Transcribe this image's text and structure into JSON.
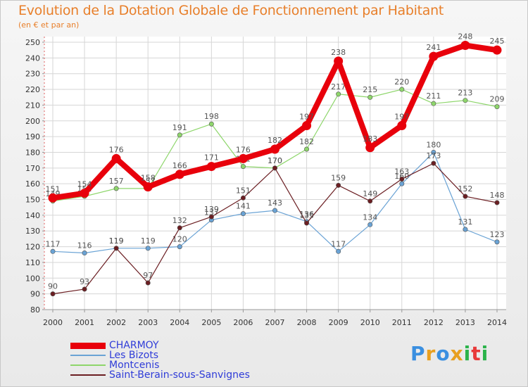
{
  "chart_data": {
    "type": "line",
    "title": "Evolution de la Dotation Globale de Fonctionnement par Habitant",
    "subtitle": "(en € et par an)",
    "xlabel": "",
    "ylabel": "",
    "ylim": [
      80,
      250
    ],
    "ytick_step": 10,
    "categories": [
      "2000",
      "2001",
      "2002",
      "2003",
      "2004",
      "2005",
      "2006",
      "2007",
      "2008",
      "2009",
      "2010",
      "2011",
      "2012",
      "2013",
      "2014"
    ],
    "series": [
      {
        "name": "CHARMOY",
        "color": "#e8000b",
        "emphasis": true,
        "values": [
          151,
          154,
          176,
          158,
          166,
          171,
          176,
          182,
          197,
          238,
          183,
          197,
          241,
          248,
          245
        ]
      },
      {
        "name": "Les Bizots",
        "color": "#6aa3d5",
        "emphasis": false,
        "values": [
          117,
          116,
          119,
          119,
          120,
          137,
          141,
          143,
          136,
          117,
          134,
          160,
          180,
          131,
          123
        ]
      },
      {
        "name": "Montcenis",
        "color": "#8ed66b",
        "emphasis": false,
        "values": [
          149,
          152,
          157,
          157,
          191,
          198,
          171,
          170,
          182,
          217,
          215,
          220,
          211,
          213,
          209
        ]
      },
      {
        "name": "Saint-Berain-sous-Sanvignes",
        "color": "#6b1e22",
        "emphasis": false,
        "values": [
          90,
          93,
          119,
          97,
          132,
          139,
          151,
          170,
          135,
          159,
          149,
          163,
          173,
          152,
          148
        ]
      }
    ],
    "legend_position": "bottom-left",
    "grid": true
  },
  "brand": {
    "text": "Proxiti",
    "letters": [
      "P",
      "r",
      "o",
      "x",
      "i",
      "t",
      "i"
    ],
    "colors": [
      "#3a8fe0",
      "#e8a020",
      "#3a8fe0",
      "#e8a020",
      "#2bb34a",
      "#e83a3a",
      "#2bb34a"
    ]
  }
}
